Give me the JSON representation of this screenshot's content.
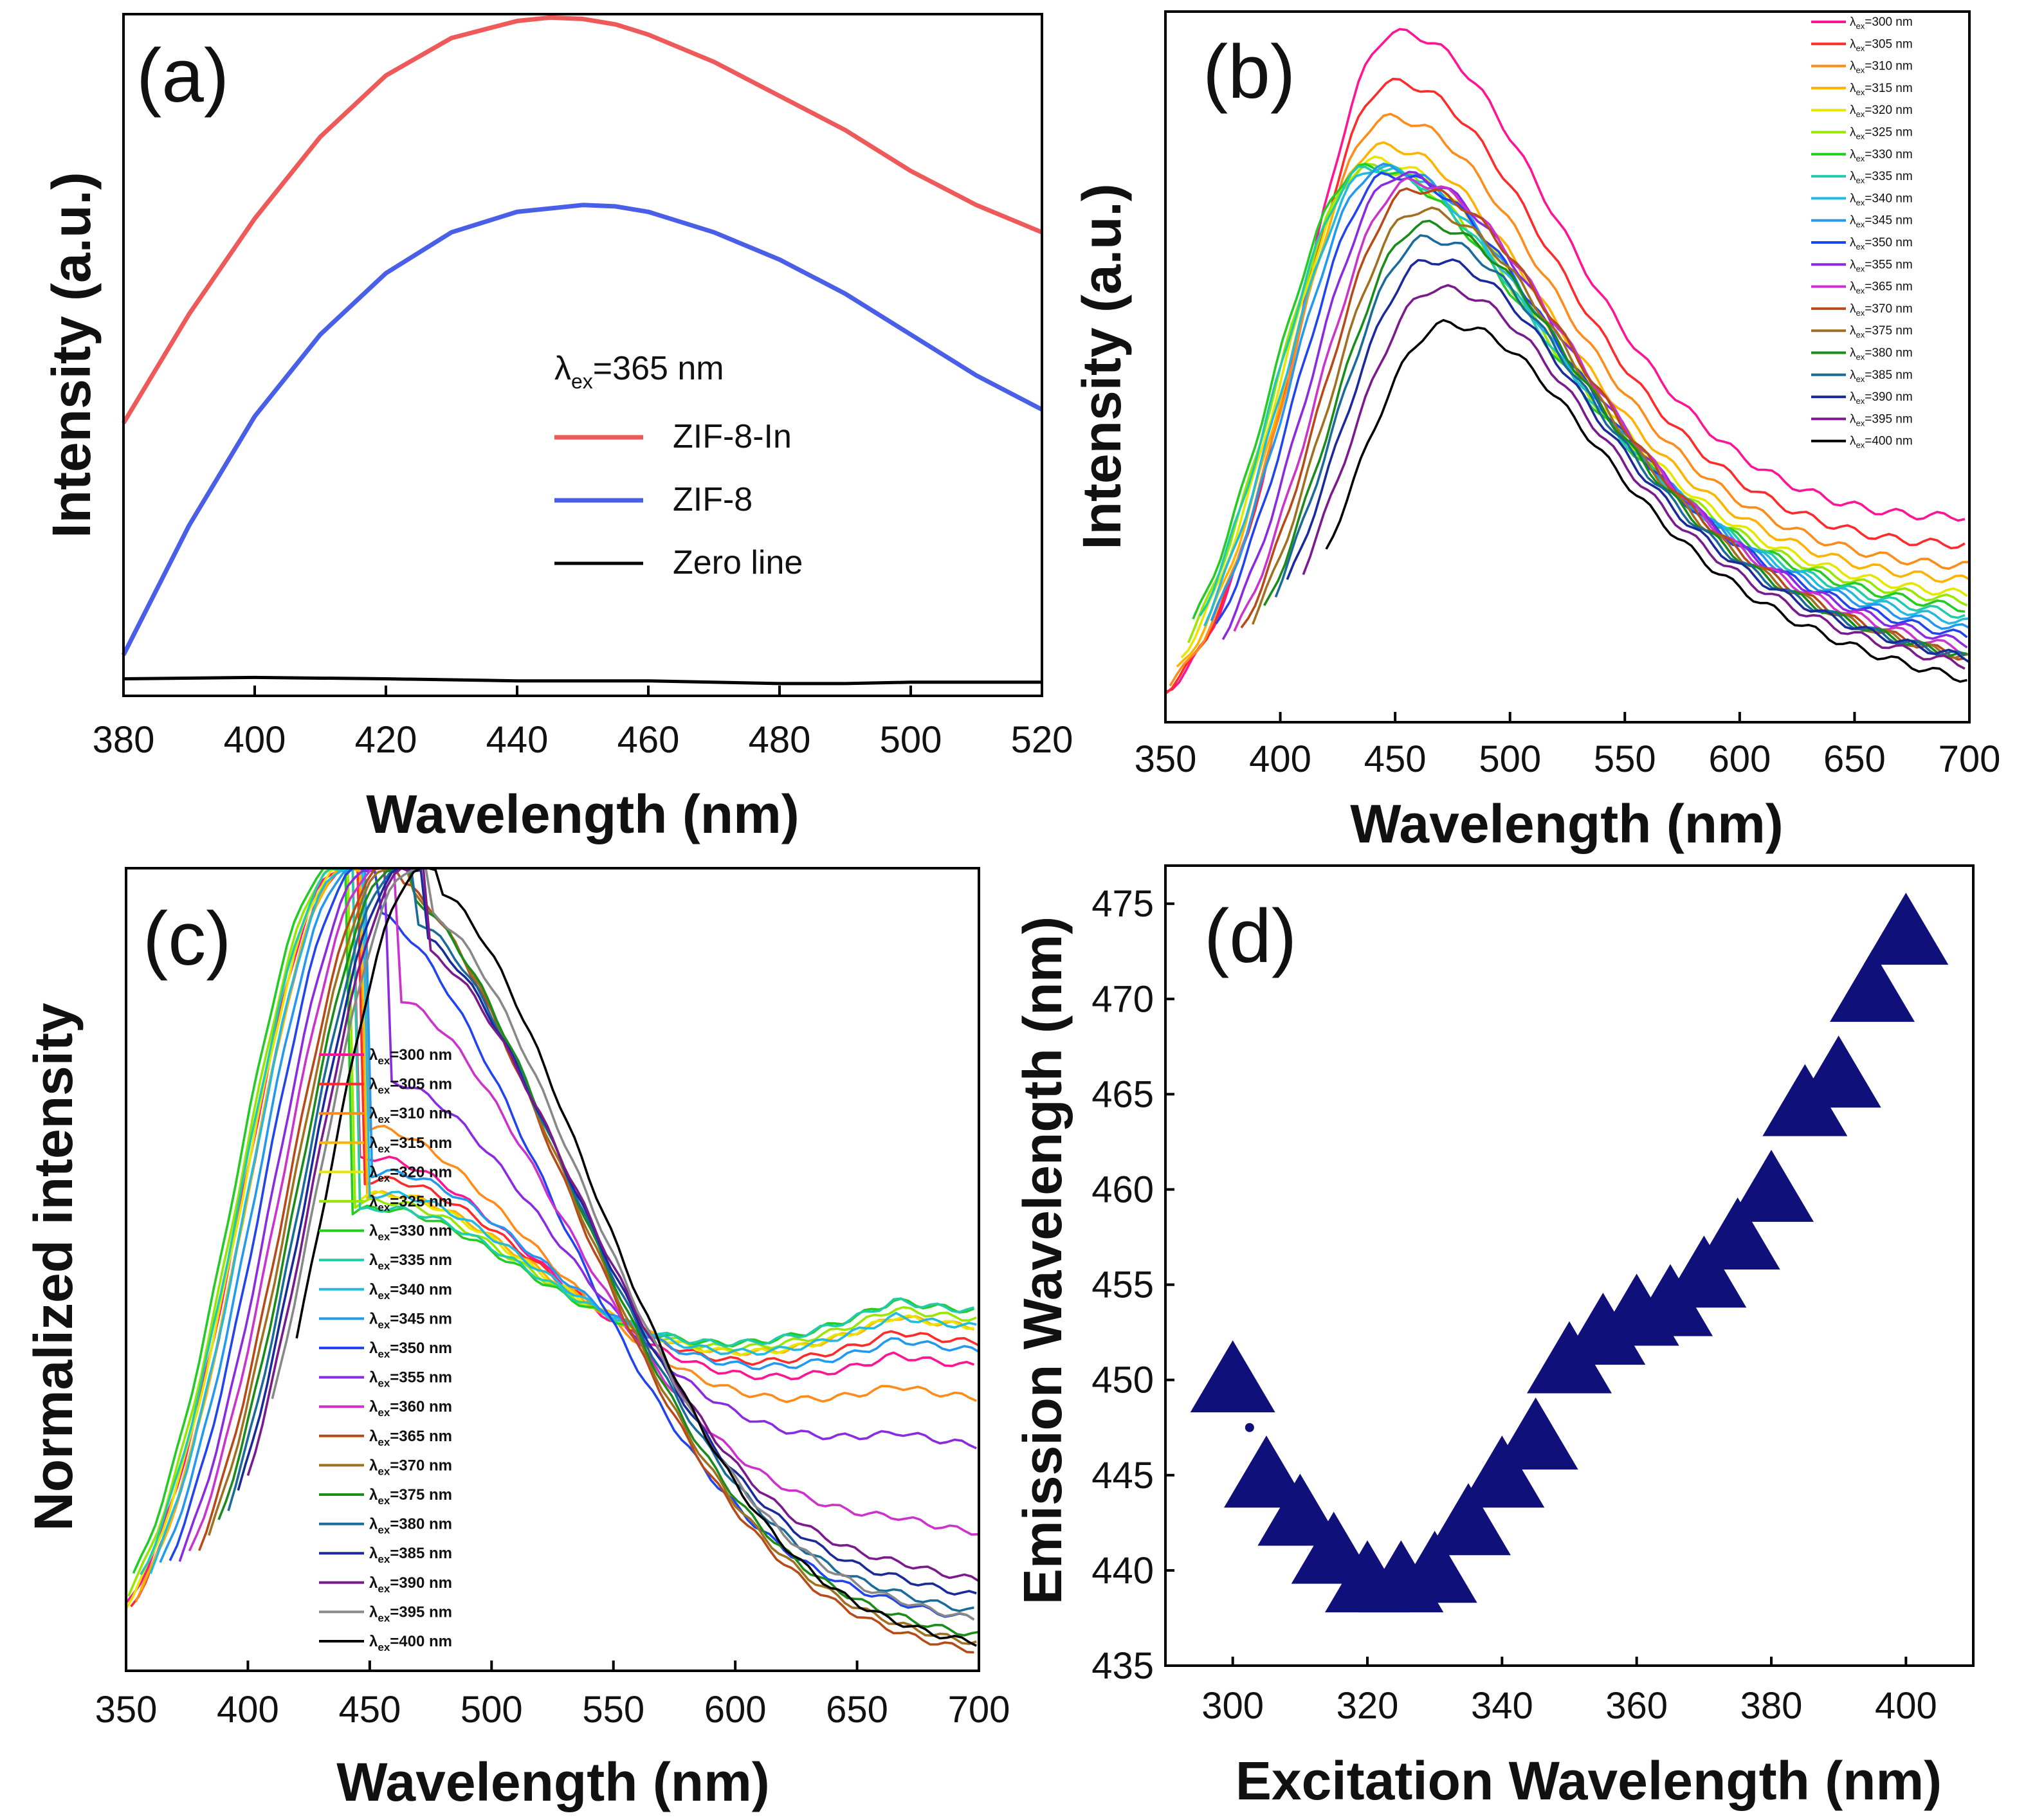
{
  "figure": {
    "domain_note": "four-panel photoluminescence figure"
  },
  "chart_data": [
    {
      "panel": "(a)",
      "type": "line",
      "xlabel": "Wavelength (nm)",
      "ylabel": "Intensity (a.u.)",
      "xlim": [
        380,
        520
      ],
      "ylim": [
        0,
        1
      ],
      "xticks": [
        380,
        400,
        420,
        440,
        460,
        480,
        500,
        520
      ],
      "legend_title": {
        "main": "λ",
        "sub": "ex",
        "rest": "=365 nm"
      },
      "series": [
        {
          "name": "ZIF-8-In",
          "color": "#ee5a5a",
          "x": [
            380,
            390,
            400,
            410,
            420,
            430,
            440,
            445,
            450,
            455,
            460,
            470,
            480,
            490,
            500,
            510,
            520
          ],
          "y": [
            0.4,
            0.56,
            0.7,
            0.82,
            0.91,
            0.965,
            0.99,
            0.995,
            0.993,
            0.985,
            0.97,
            0.93,
            0.88,
            0.83,
            0.77,
            0.72,
            0.68
          ]
        },
        {
          "name": "ZIF-8",
          "color": "#4a5fe8",
          "x": [
            380,
            390,
            400,
            410,
            420,
            430,
            440,
            450,
            455,
            460,
            470,
            480,
            490,
            500,
            510,
            520
          ],
          "y": [
            0.06,
            0.25,
            0.41,
            0.53,
            0.62,
            0.68,
            0.71,
            0.72,
            0.718,
            0.71,
            0.68,
            0.64,
            0.59,
            0.53,
            0.47,
            0.42
          ]
        },
        {
          "name": "Zero line",
          "color": "#000000",
          "x": [
            380,
            400,
            420,
            440,
            460,
            480,
            490,
            500,
            520
          ],
          "y": [
            0.025,
            0.027,
            0.025,
            0.022,
            0.022,
            0.018,
            0.018,
            0.02,
            0.02
          ]
        }
      ]
    },
    {
      "panel": "(b)",
      "type": "line",
      "xlabel": "Wavelength (nm)",
      "ylabel": "Intensity (a.u.)",
      "xlim": [
        350,
        700
      ],
      "ylim": [
        0,
        1
      ],
      "xticks": [
        350,
        400,
        450,
        500,
        550,
        600,
        650,
        700
      ],
      "legend_prefix": {
        "main": "λ",
        "sub": "ex"
      },
      "series": [
        {
          "name": "=300 nm",
          "color": "#ff1493",
          "peak_x": 450,
          "peak_y": 0.97,
          "tail": 0.29,
          "start_x": 350
        },
        {
          "name": "=305 nm",
          "color": "#ff2a2a",
          "peak_x": 448,
          "peak_y": 0.9,
          "tail": 0.25,
          "start_x": 350
        },
        {
          "name": "=310 nm",
          "color": "#ff8c1a",
          "peak_x": 446,
          "peak_y": 0.85,
          "tail": 0.22,
          "start_x": 352
        },
        {
          "name": "=315 nm",
          "color": "#ffb300",
          "peak_x": 443,
          "peak_y": 0.81,
          "tail": 0.2,
          "start_x": 355
        },
        {
          "name": "=320 nm",
          "color": "#e6e600",
          "peak_x": 440,
          "peak_y": 0.79,
          "tail": 0.18,
          "start_x": 357
        },
        {
          "name": "=325 nm",
          "color": "#99e600",
          "peak_x": 438,
          "peak_y": 0.78,
          "tail": 0.17,
          "start_x": 360
        },
        {
          "name": "=330 nm",
          "color": "#22cc22",
          "peak_x": 436,
          "peak_y": 0.78,
          "tail": 0.16,
          "start_x": 362
        },
        {
          "name": "=335 nm",
          "color": "#22ccaa",
          "peak_x": 438,
          "peak_y": 0.78,
          "tail": 0.15,
          "start_x": 365
        },
        {
          "name": "=340 nm",
          "color": "#22bbdd",
          "peak_x": 441,
          "peak_y": 0.78,
          "tail": 0.14,
          "start_x": 367
        },
        {
          "name": "=345 nm",
          "color": "#2299ee",
          "peak_x": 444,
          "peak_y": 0.78,
          "tail": 0.13,
          "start_x": 370
        },
        {
          "name": "=350 nm",
          "color": "#2244ee",
          "peak_x": 447,
          "peak_y": 0.77,
          "tail": 0.12,
          "start_x": 372
        },
        {
          "name": "=355 nm",
          "color": "#8a2be2",
          "peak_x": 452,
          "peak_y": 0.77,
          "tail": 0.11,
          "start_x": 375
        },
        {
          "name": "=365 nm",
          "color": "#cc33cc",
          "peak_x": 456,
          "peak_y": 0.76,
          "tail": 0.1,
          "start_x": 380
        },
        {
          "name": "=370 nm",
          "color": "#b84a1a",
          "peak_x": 458,
          "peak_y": 0.75,
          "tail": 0.09,
          "start_x": 383
        },
        {
          "name": "=375 nm",
          "color": "#a07020",
          "peak_x": 460,
          "peak_y": 0.72,
          "tail": 0.09,
          "start_x": 388
        },
        {
          "name": "=380 nm",
          "color": "#1a8c1a",
          "peak_x": 462,
          "peak_y": 0.7,
          "tail": 0.09,
          "start_x": 393
        },
        {
          "name": "=385 nm",
          "color": "#1a6a9a",
          "peak_x": 463,
          "peak_y": 0.68,
          "tail": 0.09,
          "start_x": 398
        },
        {
          "name": "=390 nm",
          "color": "#1a2a9a",
          "peak_x": 465,
          "peak_y": 0.65,
          "tail": 0.09,
          "start_x": 403
        },
        {
          "name": "=395 nm",
          "color": "#7a1a8c",
          "peak_x": 468,
          "peak_y": 0.61,
          "tail": 0.08,
          "start_x": 410
        },
        {
          "name": "=400 nm",
          "color": "#000000",
          "peak_x": 472,
          "peak_y": 0.56,
          "tail": 0.06,
          "start_x": 420
        }
      ]
    },
    {
      "panel": "(c)",
      "type": "line",
      "xlabel": "Wavelength (nm)",
      "ylabel": "Normalized intensity",
      "xlim": [
        350,
        700
      ],
      "ylim": [
        0,
        1
      ],
      "xticks": [
        350,
        400,
        450,
        500,
        550,
        600,
        650,
        700
      ],
      "legend_prefix": {
        "main": "λ",
        "sub": "ex"
      },
      "series": [
        {
          "name": "=300 nm",
          "color": "#ff1493",
          "peak_x": 438,
          "tail": 0.37,
          "start_x": 350
        },
        {
          "name": "=305 nm",
          "color": "#ff2a2a",
          "peak_x": 440,
          "tail": 0.4,
          "start_x": 352
        },
        {
          "name": "=310 nm",
          "color": "#ff8c1a",
          "peak_x": 440,
          "tail": 0.33,
          "start_x": 354
        },
        {
          "name": "=315 nm",
          "color": "#ffb300",
          "peak_x": 440,
          "tail": 0.42,
          "start_x": 356
        },
        {
          "name": "=320 nm",
          "color": "#e6e600",
          "peak_x": 438,
          "tail": 0.42,
          "start_x": 350
        },
        {
          "name": "=325 nm",
          "color": "#99e600",
          "peak_x": 436,
          "tail": 0.43,
          "start_x": 351
        },
        {
          "name": "=330 nm",
          "color": "#22cc22",
          "peak_x": 434,
          "tail": 0.44,
          "start_x": 353
        },
        {
          "name": "=335 nm",
          "color": "#22ccaa",
          "peak_x": 437,
          "tail": 0.44,
          "start_x": 356
        },
        {
          "name": "=340 nm",
          "color": "#22bbdd",
          "peak_x": 440,
          "tail": 0.42,
          "start_x": 360
        },
        {
          "name": "=345 nm",
          "color": "#2299ee",
          "peak_x": 443,
          "tail": 0.39,
          "start_x": 364
        },
        {
          "name": "=350 nm",
          "color": "#2244ee",
          "peak_x": 446,
          "tail": 0.05,
          "start_x": 368
        },
        {
          "name": "=355 nm",
          "color": "#8a2be2",
          "peak_x": 450,
          "tail": 0.27,
          "start_x": 372
        },
        {
          "name": "=360 nm",
          "color": "#cc33cc",
          "peak_x": 453,
          "tail": 0.16,
          "start_x": 376
        },
        {
          "name": "=365 nm",
          "color": "#b84a1a",
          "peak_x": 456,
          "tail": 0.01,
          "start_x": 380
        },
        {
          "name": "=370 nm",
          "color": "#a07020",
          "peak_x": 458,
          "tail": 0.02,
          "start_x": 384
        },
        {
          "name": "=375 nm",
          "color": "#1a8c1a",
          "peak_x": 460,
          "tail": 0.03,
          "start_x": 388
        },
        {
          "name": "=380 nm",
          "color": "#1a6a9a",
          "peak_x": 462,
          "tail": 0.06,
          "start_x": 392
        },
        {
          "name": "=385 nm",
          "color": "#1a2a9a",
          "peak_x": 464,
          "tail": 0.08,
          "start_x": 396
        },
        {
          "name": "=390 nm",
          "color": "#7a1a8c",
          "peak_x": 466,
          "tail": 0.1,
          "start_x": 400
        },
        {
          "name": "=395 nm",
          "color": "#888888",
          "peak_x": 468,
          "tail": 0.05,
          "start_x": 410
        },
        {
          "name": "=400 nm",
          "color": "#000000",
          "peak_x": 472,
          "tail": 0.02,
          "start_x": 420
        }
      ]
    },
    {
      "panel": "(d)",
      "type": "scatter",
      "xlabel": "Excitation Wavelength (nm)",
      "ylabel": "Emission Wavelength (nm)",
      "xlim": [
        290,
        410
      ],
      "ylim": [
        435,
        477
      ],
      "xticks": [
        300,
        320,
        340,
        360,
        380,
        400
      ],
      "yticks": [
        435,
        440,
        445,
        450,
        455,
        460,
        465,
        470,
        475
      ],
      "marker": "triangle",
      "color": "#10107a",
      "x": [
        300,
        305,
        310,
        315,
        320,
        325,
        330,
        335,
        340,
        345,
        350,
        355,
        360,
        365,
        370,
        375,
        380,
        385,
        390,
        395,
        400
      ],
      "y": [
        450,
        445,
        443,
        441,
        439.5,
        439.5,
        440,
        442.5,
        445,
        447,
        451,
        452.5,
        453.5,
        454,
        455.5,
        457.5,
        460,
        464.5,
        466,
        470.5,
        473.5
      ]
    }
  ]
}
